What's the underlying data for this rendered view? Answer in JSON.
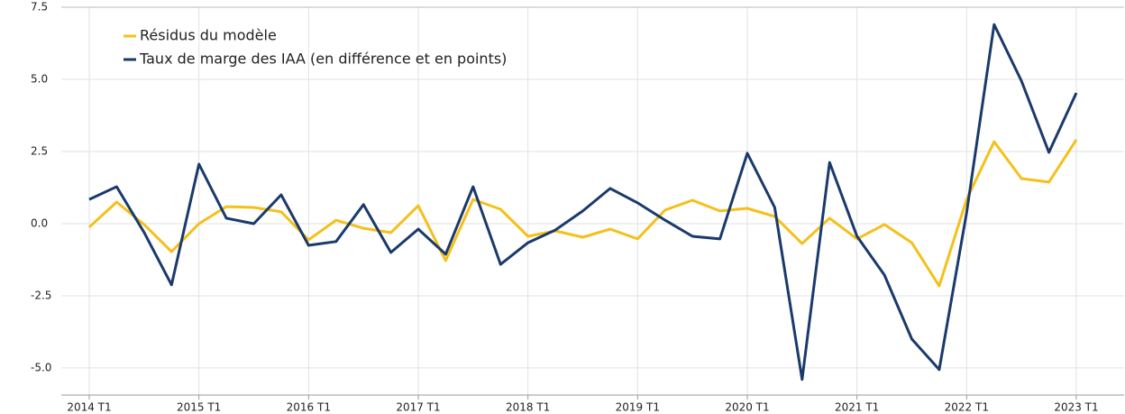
{
  "chart_data": {
    "type": "line",
    "categories": [
      "2014 T1",
      null,
      null,
      null,
      "2015 T1",
      null,
      null,
      null,
      "2016 T1",
      null,
      null,
      null,
      "2017 T1",
      null,
      null,
      null,
      "2018 T1",
      null,
      null,
      null,
      "2019 T1",
      null,
      null,
      null,
      "2020 T1",
      null,
      null,
      null,
      "2021 T1",
      null,
      null,
      null,
      "2022 T1",
      null,
      null,
      null,
      "2023 T1"
    ],
    "series": [
      {
        "name": "Résidus du modèle",
        "color": "#f5c01a",
        "values": [
          -0.12,
          0.75,
          -0.03,
          -0.97,
          0.0,
          0.59,
          0.56,
          0.41,
          -0.56,
          0.12,
          -0.16,
          -0.31,
          0.62,
          -1.28,
          0.84,
          0.5,
          -0.44,
          -0.25,
          -0.47,
          -0.19,
          -0.53,
          0.47,
          0.81,
          0.44,
          0.53,
          0.25,
          -0.69,
          0.19,
          -0.53,
          -0.03,
          -0.66,
          -2.16,
          0.84,
          2.84,
          1.56,
          1.44,
          2.91
        ]
      },
      {
        "name": "Taux de marge des IAA (en différence et en points)",
        "color": "#1a3a6b",
        "values": [
          0.84,
          1.28,
          -0.3,
          -2.12,
          2.06,
          0.19,
          0.0,
          1.0,
          -0.75,
          -0.62,
          0.66,
          -1.0,
          -0.19,
          -1.06,
          1.28,
          -1.41,
          -0.66,
          -0.22,
          0.44,
          1.22,
          0.72,
          0.12,
          -0.44,
          -0.53,
          2.44,
          0.56,
          -5.4,
          2.12,
          -0.44,
          -1.78,
          -4.0,
          -5.06,
          0.38,
          6.9,
          4.94,
          2.47,
          4.53
        ]
      }
    ],
    "ylim": [
      -5.94,
      7.5
    ],
    "yticks": [
      {
        "value": -5,
        "label": "-5.0"
      },
      {
        "value": -2.5,
        "label": "-2.5"
      },
      {
        "value": 0,
        "label": "0.0"
      },
      {
        "value": 2.5,
        "label": "2.5"
      },
      {
        "value": 5,
        "label": "5.0"
      },
      {
        "value": 7.5,
        "label": "7.5"
      }
    ],
    "grid": true,
    "legend": "top-left"
  }
}
